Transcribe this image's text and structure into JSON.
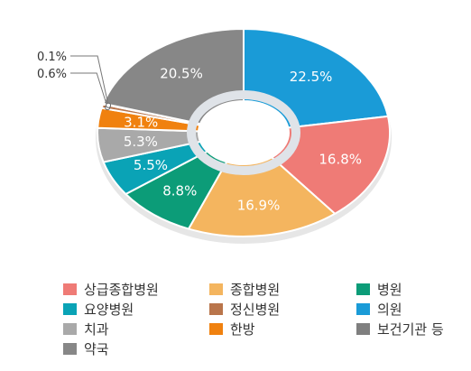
{
  "chart_data": {
    "type": "pie",
    "variant": "donut",
    "title": "",
    "categories": [
      "상급종합병원",
      "종합병원",
      "병원",
      "요양병원",
      "정신병원",
      "의원",
      "치과",
      "한방",
      "보건기관 등",
      "약국"
    ],
    "slices": [
      {
        "name": "의원",
        "value": 22.5,
        "label": "22.5%",
        "color": "#1a9bd7"
      },
      {
        "name": "상급종합병원",
        "value": 16.8,
        "label": "16.8%",
        "color": "#ef7b76"
      },
      {
        "name": "종합병원",
        "value": 16.9,
        "label": "16.9%",
        "color": "#f4b55f"
      },
      {
        "name": "병원",
        "value": 8.8,
        "label": "8.8%",
        "color": "#0c9c78"
      },
      {
        "name": "요양병원",
        "value": 5.5,
        "label": "5.5%",
        "color": "#0aa3b6"
      },
      {
        "name": "치과",
        "value": 5.3,
        "label": "5.3%",
        "color": "#a9a9a9"
      },
      {
        "name": "한방",
        "value": 3.1,
        "label": "3.1%",
        "color": "#f0810f"
      },
      {
        "name": "정신병원",
        "value": 0.6,
        "label": "0.6%",
        "color": "#b9754b"
      },
      {
        "name": "보건기관 등",
        "value": 0.1,
        "label": "0.1%",
        "color": "#7f7f7f"
      },
      {
        "name": "약국",
        "value": 20.5,
        "label": "20.5%",
        "color": "#878787"
      }
    ],
    "legend": {
      "placement": "bottom",
      "items": [
        {
          "label": "상급종합병원",
          "color": "#ef7b76"
        },
        {
          "label": "종합병원",
          "color": "#f4b55f"
        },
        {
          "label": "병원",
          "color": "#0c9c78"
        },
        {
          "label": "요양병원",
          "color": "#0aa3b6"
        },
        {
          "label": "정신병원",
          "color": "#b9754b"
        },
        {
          "label": "의원",
          "color": "#1a9bd7"
        },
        {
          "label": "치과",
          "color": "#a9a9a9"
        },
        {
          "label": "한방",
          "color": "#f0810f"
        },
        {
          "label": "보건기관 등",
          "color": "#7f7f7f"
        },
        {
          "label": "약국",
          "color": "#878787"
        }
      ]
    }
  }
}
